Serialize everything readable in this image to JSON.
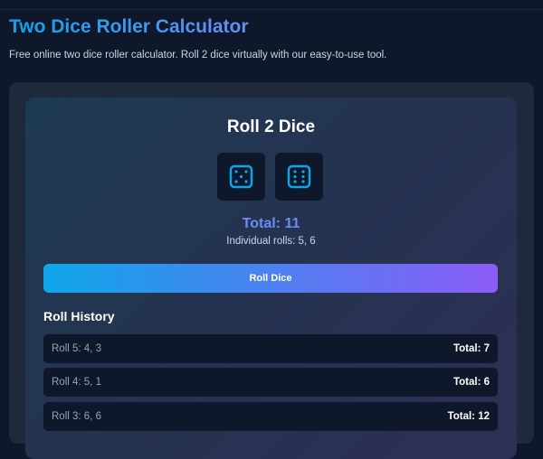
{
  "header": {
    "title": "Two Dice Roller Calculator",
    "description": "Free online two dice roller calculator. Roll 2 dice virtually with our easy-to-use tool."
  },
  "roller": {
    "title": "Roll 2 Dice",
    "dice": [
      5,
      6
    ],
    "total": "Total: 11",
    "individual": "Individual rolls: 5, 6",
    "button": "Roll Dice"
  },
  "history": {
    "title": "Roll History",
    "rows": [
      {
        "label": "Roll 5: 4, 3",
        "total": "Total: 7"
      },
      {
        "label": "Roll 4: 5, 1",
        "total": "Total: 6"
      },
      {
        "label": "Roll 3: 6, 6",
        "total": "Total: 12"
      }
    ]
  },
  "colors": {
    "accent": "#0ea5e9",
    "accent2": "#8b5cf6",
    "total": "#6b8cf5"
  }
}
